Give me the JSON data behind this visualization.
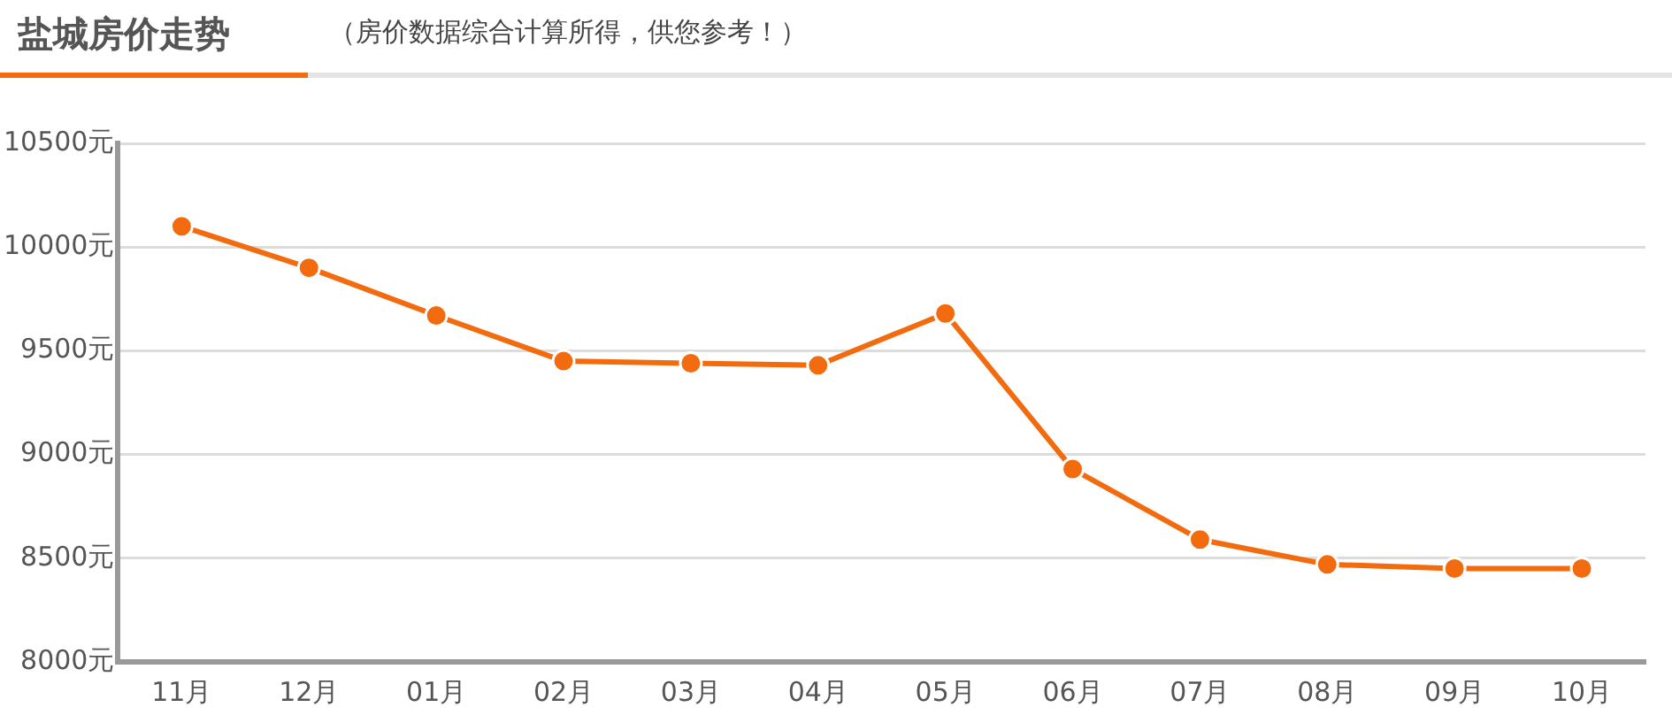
{
  "chart_data": {
    "type": "line",
    "title": "盐城房价走势",
    "subtitle": "（房价数据综合计算所得，供您参考！）",
    "categories": [
      "11月",
      "12月",
      "01月",
      "02月",
      "03月",
      "04月",
      "05月",
      "06月",
      "07月",
      "08月",
      "09月",
      "10月"
    ],
    "series": [
      {
        "color": "#f26b0f",
        "values": [
          10100,
          9900,
          9670,
          9450,
          9440,
          9430,
          9680,
          8930,
          8590,
          8470,
          8450,
          8450
        ]
      }
    ],
    "ylim": [
      8000,
      10500
    ],
    "yticks": [
      {
        "value": 8000,
        "label": "8000元"
      },
      {
        "value": 8500,
        "label": "8500元"
      },
      {
        "value": 9000,
        "label": "9000元"
      },
      {
        "value": 9500,
        "label": "9500元"
      },
      {
        "value": 10000,
        "label": "10000元"
      },
      {
        "value": 10500,
        "label": "10500元"
      }
    ],
    "grid": "y",
    "legend": false,
    "marker": "circle",
    "line_style": "solid"
  }
}
